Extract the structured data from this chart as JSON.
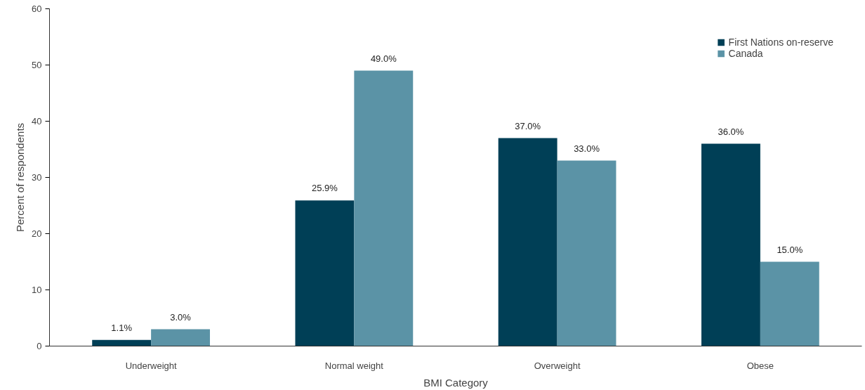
{
  "chart_data": {
    "type": "bar",
    "xlabel": "BMI Category",
    "ylabel": "Percent of respondents",
    "categories": [
      "Underweight",
      "Normal weight",
      "Overweight",
      "Obese"
    ],
    "series": [
      {
        "name": "First Nations on-reserve",
        "color": "#003f56",
        "values": [
          1.1,
          25.9,
          37.0,
          36.0
        ],
        "value_labels": [
          "1.1%",
          "25.9%",
          "37.0%",
          "36.0%"
        ]
      },
      {
        "name": "Canada",
        "color": "#5b93a6",
        "values": [
          3.0,
          49.0,
          33.0,
          15.0
        ],
        "value_labels": [
          "3.0%",
          "49.0%",
          "33.0%",
          "15.0%"
        ]
      }
    ],
    "ylim": [
      0,
      60
    ],
    "yticks": [
      0,
      10,
      20,
      30,
      40,
      50,
      60
    ],
    "grid": false,
    "legend": "top right"
  }
}
